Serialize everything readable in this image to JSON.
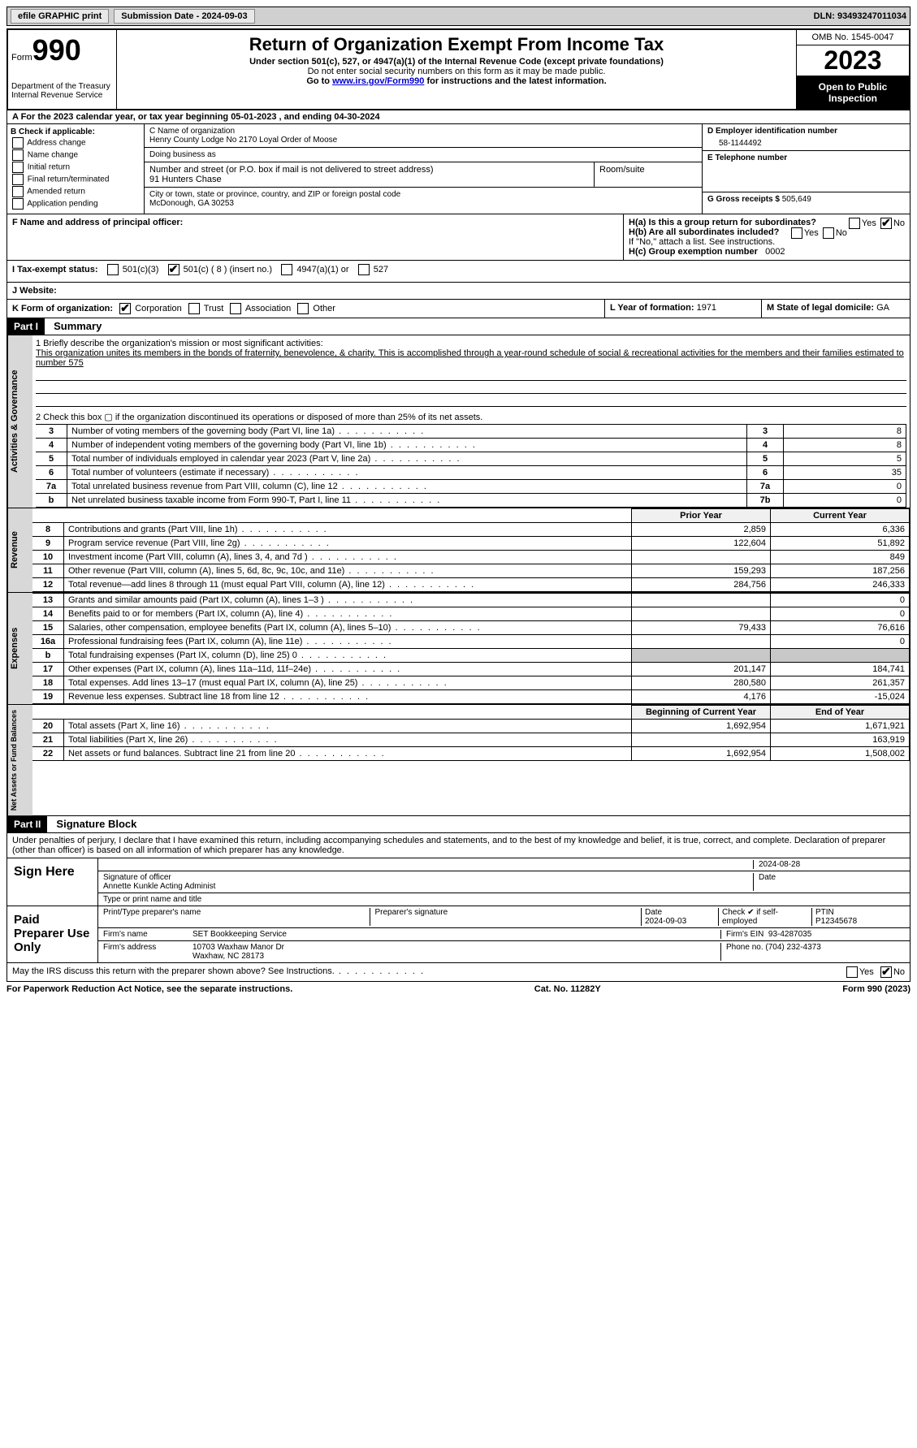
{
  "top": {
    "efile": "efile GRAPHIC print",
    "submission_label": "Submission Date - 2024-09-03",
    "dln": "DLN: 93493247011034"
  },
  "header": {
    "form_word": "Form",
    "form_no": "990",
    "title": "Return of Organization Exempt From Income Tax",
    "sub1": "Under section 501(c), 527, or 4947(a)(1) of the Internal Revenue Code (except private foundations)",
    "sub2": "Do not enter social security numbers on this form as it may be made public.",
    "sub3_pre": "Go to ",
    "sub3_link": "www.irs.gov/Form990",
    "sub3_post": " for instructions and the latest information.",
    "dept": "Department of the Treasury Internal Revenue Service",
    "omb": "OMB No. 1545-0047",
    "year": "2023",
    "open": "Open to Public Inspection"
  },
  "a": {
    "text": "A   For the 2023 calendar year, or tax year beginning 05-01-2023   , and ending 04-30-2024"
  },
  "b": {
    "label": "B Check if applicable:",
    "opts": [
      "Address change",
      "Name change",
      "Initial return",
      "Final return/terminated",
      "Amended return",
      "Application pending"
    ]
  },
  "c": {
    "name_label": "C Name of organization",
    "name": "Henry County Lodge No 2170 Loyal Order of Moose",
    "dba_label": "Doing business as",
    "dba": "",
    "street_label": "Number and street (or P.O. box if mail is not delivered to street address)",
    "street": "91 Hunters Chase",
    "room_label": "Room/suite",
    "city_label": "City or town, state or province, country, and ZIP or foreign postal code",
    "city": "McDonough, GA  30253"
  },
  "d": {
    "label": "D Employer identification number",
    "value": "58-1144492"
  },
  "e": {
    "label": "E Telephone number",
    "value": ""
  },
  "g": {
    "label": "G Gross receipts $",
    "value": "505,649"
  },
  "f": {
    "label": "F  Name and address of principal officer:",
    "value": ""
  },
  "h": {
    "a_label": "H(a)  Is this a group return for subordinates?",
    "a_yes": "Yes",
    "a_no": "No",
    "b_label": "H(b)  Are all subordinates included?",
    "b_note": "If \"No,\" attach a list. See instructions.",
    "c_label": "H(c)  Group exemption number",
    "c_value": "0002"
  },
  "i": {
    "label": "I    Tax-exempt status:",
    "o1": "501(c)(3)",
    "o2": "501(c) ( 8 ) (insert no.)",
    "o3": "4947(a)(1) or",
    "o4": "527"
  },
  "j": {
    "label": "J   Website:",
    "value": ""
  },
  "k": {
    "label": "K Form of organization:",
    "o1": "Corporation",
    "o2": "Trust",
    "o3": "Association",
    "o4": "Other"
  },
  "l": {
    "label": "L Year of formation:",
    "value": "1971"
  },
  "m": {
    "label": "M State of legal domicile:",
    "value": "GA"
  },
  "part1": {
    "hdr": "Part I",
    "title": "Summary",
    "q1_label": "1   Briefly describe the organization's mission or most significant activities:",
    "q1_text": "This organization unites its members in the bonds of fraternity, benevolence, & charity. This is accomplished through a year-round schedule of social & recreational activities for the members and their families estimated to number 575",
    "q2": "2   Check this box  ▢  if the organization discontinued its operations or disposed of more than 25% of its net assets.",
    "lines_simple": [
      {
        "n": "3",
        "desc": "Number of voting members of the governing body (Part VI, line 1a)",
        "box": "3",
        "val": "8"
      },
      {
        "n": "4",
        "desc": "Number of independent voting members of the governing body (Part VI, line 1b)",
        "box": "4",
        "val": "8"
      },
      {
        "n": "5",
        "desc": "Total number of individuals employed in calendar year 2023 (Part V, line 2a)",
        "box": "5",
        "val": "5"
      },
      {
        "n": "6",
        "desc": "Total number of volunteers (estimate if necessary)",
        "box": "6",
        "val": "35"
      },
      {
        "n": "7a",
        "desc": "Total unrelated business revenue from Part VIII, column (C), line 12",
        "box": "7a",
        "val": "0"
      },
      {
        "n": "b",
        "desc": "Net unrelated business taxable income from Form 990-T, Part I, line 11",
        "box": "7b",
        "val": "0"
      }
    ],
    "hdr_prior": "Prior Year",
    "hdr_current": "Current Year",
    "revenue": [
      {
        "n": "8",
        "desc": "Contributions and grants (Part VIII, line 1h)",
        "p": "2,859",
        "c": "6,336"
      },
      {
        "n": "9",
        "desc": "Program service revenue (Part VIII, line 2g)",
        "p": "122,604",
        "c": "51,892"
      },
      {
        "n": "10",
        "desc": "Investment income (Part VIII, column (A), lines 3, 4, and 7d )",
        "p": "",
        "c": "849"
      },
      {
        "n": "11",
        "desc": "Other revenue (Part VIII, column (A), lines 5, 6d, 8c, 9c, 10c, and 11e)",
        "p": "159,293",
        "c": "187,256"
      },
      {
        "n": "12",
        "desc": "Total revenue—add lines 8 through 11 (must equal Part VIII, column (A), line 12)",
        "p": "284,756",
        "c": "246,333"
      }
    ],
    "expenses": [
      {
        "n": "13",
        "desc": "Grants and similar amounts paid (Part IX, column (A), lines 1–3 )",
        "p": "",
        "c": "0"
      },
      {
        "n": "14",
        "desc": "Benefits paid to or for members (Part IX, column (A), line 4)",
        "p": "",
        "c": "0"
      },
      {
        "n": "15",
        "desc": "Salaries, other compensation, employee benefits (Part IX, column (A), lines 5–10)",
        "p": "79,433",
        "c": "76,616"
      },
      {
        "n": "16a",
        "desc": "Professional fundraising fees (Part IX, column (A), line 11e)",
        "p": "",
        "c": "0"
      },
      {
        "n": "b",
        "desc": "Total fundraising expenses (Part IX, column (D), line 25) 0",
        "p": "shade",
        "c": "shade"
      },
      {
        "n": "17",
        "desc": "Other expenses (Part IX, column (A), lines 11a–11d, 11f–24e)",
        "p": "201,147",
        "c": "184,741"
      },
      {
        "n": "18",
        "desc": "Total expenses. Add lines 13–17 (must equal Part IX, column (A), line 25)",
        "p": "280,580",
        "c": "261,357"
      },
      {
        "n": "19",
        "desc": "Revenue less expenses. Subtract line 18 from line 12",
        "p": "4,176",
        "c": "-15,024"
      }
    ],
    "hdr_begin": "Beginning of Current Year",
    "hdr_end": "End of Year",
    "netassets": [
      {
        "n": "20",
        "desc": "Total assets (Part X, line 16)",
        "p": "1,692,954",
        "c": "1,671,921"
      },
      {
        "n": "21",
        "desc": "Total liabilities (Part X, line 26)",
        "p": "",
        "c": "163,919"
      },
      {
        "n": "22",
        "desc": "Net assets or fund balances. Subtract line 21 from line 20",
        "p": "1,692,954",
        "c": "1,508,002"
      }
    ],
    "vtab_ag": "Activities & Governance",
    "vtab_rev": "Revenue",
    "vtab_exp": "Expenses",
    "vtab_na": "Net Assets or Fund Balances"
  },
  "part2": {
    "hdr": "Part II",
    "title": "Signature Block",
    "decl": "Under penalties of perjury, I declare that I have examined this return, including accompanying schedules and statements, and to the best of my knowledge and belief, it is true, correct, and complete. Declaration of preparer (other than officer) is based on all information of which preparer has any knowledge.",
    "sign_here": "Sign Here",
    "sig_date": "2024-08-28",
    "sig_label": "Signature of officer",
    "officer": "Annette Kunkle  Acting Administ",
    "type_label": "Type or print name and title",
    "date_label": "Date",
    "paid": "Paid Preparer Use Only",
    "prep_name_label": "Print/Type preparer's name",
    "prep_sig_label": "Preparer's signature",
    "prep_date": "2024-09-03",
    "check_label": "Check ✔ if self-employed",
    "ptin_label": "PTIN",
    "ptin": "P12345678",
    "firm_name_label": "Firm's name",
    "firm_name": "SET Bookkeeping Service",
    "firm_ein_label": "Firm's EIN",
    "firm_ein": "93-4287035",
    "firm_addr_label": "Firm's address",
    "firm_addr1": "10703 Waxhaw Manor Dr",
    "firm_addr2": "Waxhaw, NC  28173",
    "phone_label": "Phone no.",
    "phone": "(704) 232-4373",
    "discuss": "May the IRS discuss this return with the preparer shown above? See Instructions.",
    "yes": "Yes",
    "no": "No"
  },
  "footer": {
    "left": "For Paperwork Reduction Act Notice, see the separate instructions.",
    "mid": "Cat. No. 11282Y",
    "right": "Form 990 (2023)"
  }
}
